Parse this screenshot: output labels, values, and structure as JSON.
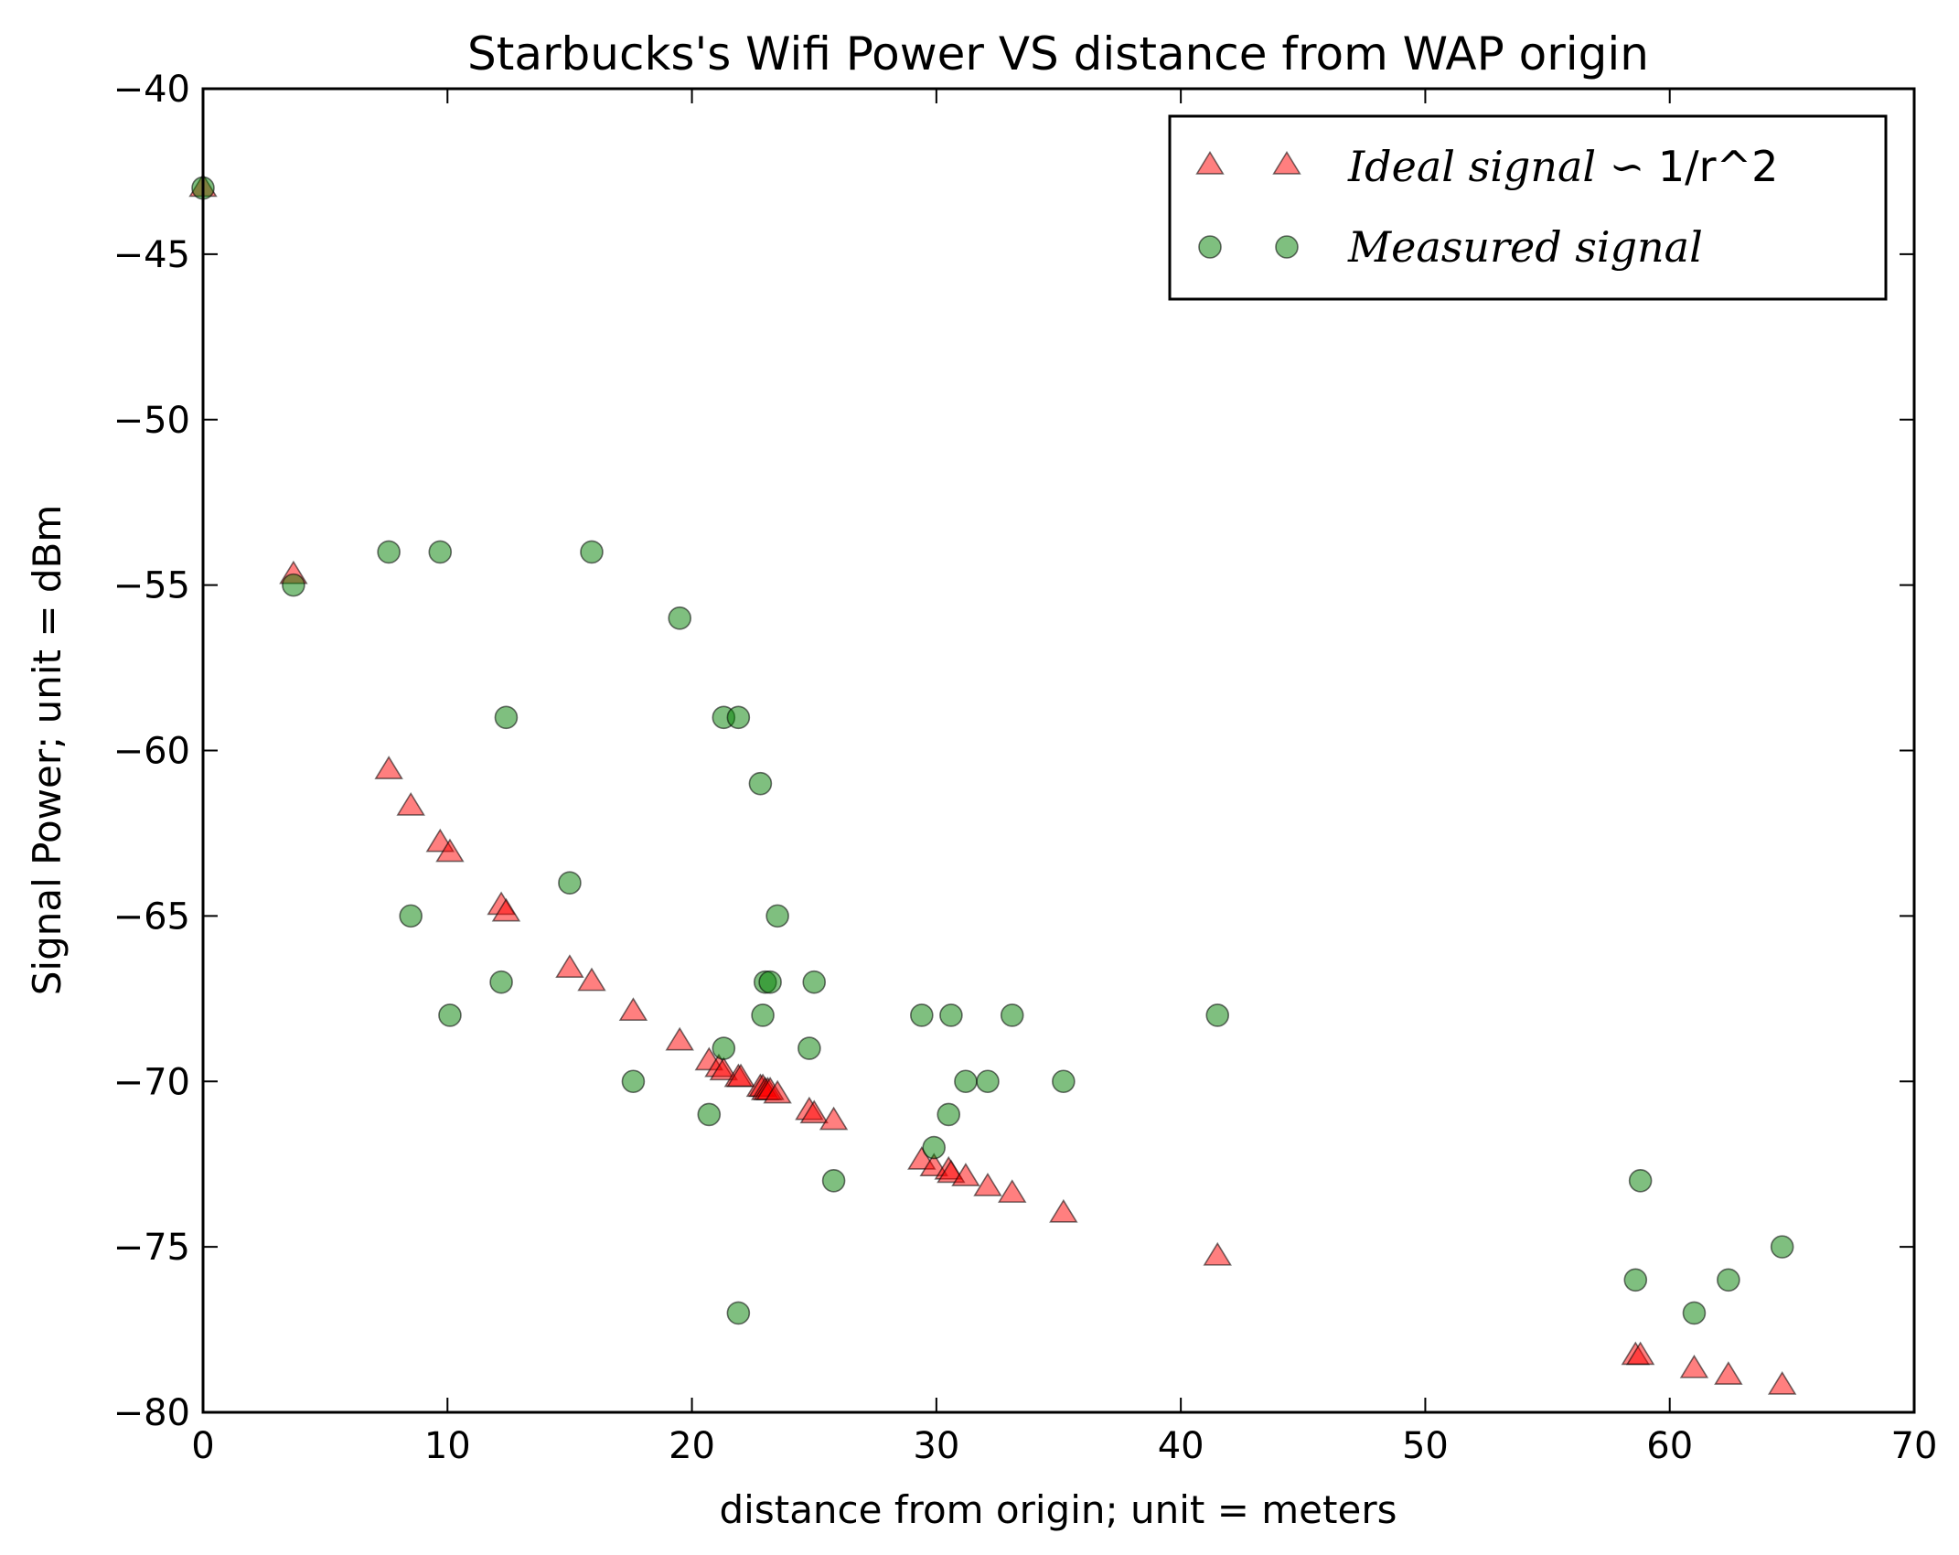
{
  "chart_data": {
    "type": "scatter",
    "title": "Starbucks's Wifi Power VS distance from WAP origin",
    "xlabel": "distance from origin; unit = meters",
    "ylabel": "Signal Power; unit = dBm",
    "xlim": [
      0,
      70
    ],
    "ylim": [
      -80,
      -40
    ],
    "xticks": [
      0,
      10,
      20,
      30,
      40,
      50,
      60,
      70
    ],
    "yticks": [
      -80,
      -75,
      -70,
      -65,
      -60,
      -55,
      -50,
      -45,
      -40
    ],
    "xtick_labels": [
      "0",
      "10",
      "20",
      "30",
      "40",
      "50",
      "60",
      "70"
    ],
    "ytick_labels": [
      "−80",
      "−75",
      "−70",
      "−65",
      "−60",
      "−55",
      "−50",
      "−45",
      "−40"
    ],
    "grid": false,
    "legend_position": "top-right",
    "series": [
      {
        "name": "Ideal signal ∽ 1/r^2",
        "name_italic": "Ideal signal ∽",
        "name_plain": " 1/r^2",
        "marker": "triangle",
        "color": "#ff0000",
        "x": [
          0,
          3.7,
          7.6,
          8.5,
          9.7,
          10.1,
          12.2,
          12.4,
          15.0,
          15.9,
          17.6,
          19.5,
          20.7,
          21.1,
          21.3,
          21.9,
          22.0,
          22.8,
          22.9,
          23.0,
          23.1,
          23.2,
          23.5,
          24.8,
          25.0,
          25.8,
          29.4,
          29.9,
          30.5,
          30.6,
          31.2,
          32.1,
          33.1,
          35.2,
          41.5,
          58.6,
          58.8,
          61.0,
          62.4,
          64.6
        ],
        "y": [
          -43.0,
          -54.7,
          -60.6,
          -61.7,
          -62.8,
          -63.1,
          -64.7,
          -64.9,
          -66.6,
          -67.0,
          -67.9,
          -68.8,
          -69.4,
          -69.6,
          -69.7,
          -69.9,
          -69.9,
          -70.2,
          -70.2,
          -70.3,
          -70.3,
          -70.3,
          -70.4,
          -70.9,
          -71.0,
          -71.2,
          -72.4,
          -72.6,
          -72.7,
          -72.8,
          -72.9,
          -73.2,
          -73.4,
          -74.0,
          -75.3,
          -78.3,
          -78.3,
          -78.7,
          -78.9,
          -79.2
        ]
      },
      {
        "name": "Measured signal",
        "marker": "circle",
        "color": "#008000",
        "x": [
          0,
          3.7,
          7.6,
          9.7,
          15.9,
          19.5,
          12.4,
          21.3,
          21.9,
          22.8,
          15.0,
          8.5,
          23.5,
          12.2,
          23.0,
          23.2,
          25.0,
          10.1,
          22.9,
          29.4,
          30.6,
          33.1,
          41.5,
          21.3,
          24.8,
          17.6,
          31.2,
          32.1,
          35.2,
          20.7,
          30.5,
          29.9,
          25.8,
          58.8,
          64.6,
          58.6,
          62.4,
          61.0,
          21.9
        ],
        "y": [
          -43,
          -55,
          -54,
          -54,
          -54,
          -56,
          -59,
          -59,
          -59,
          -61,
          -64,
          -65,
          -65,
          -67,
          -67,
          -67,
          -67,
          -68,
          -68,
          -68,
          -68,
          -68,
          -68,
          -69,
          -69,
          -70,
          -70,
          -70,
          -70,
          -71,
          -71,
          -72,
          -73,
          -73,
          -75,
          -76,
          -76,
          -77,
          -77
        ]
      }
    ]
  }
}
